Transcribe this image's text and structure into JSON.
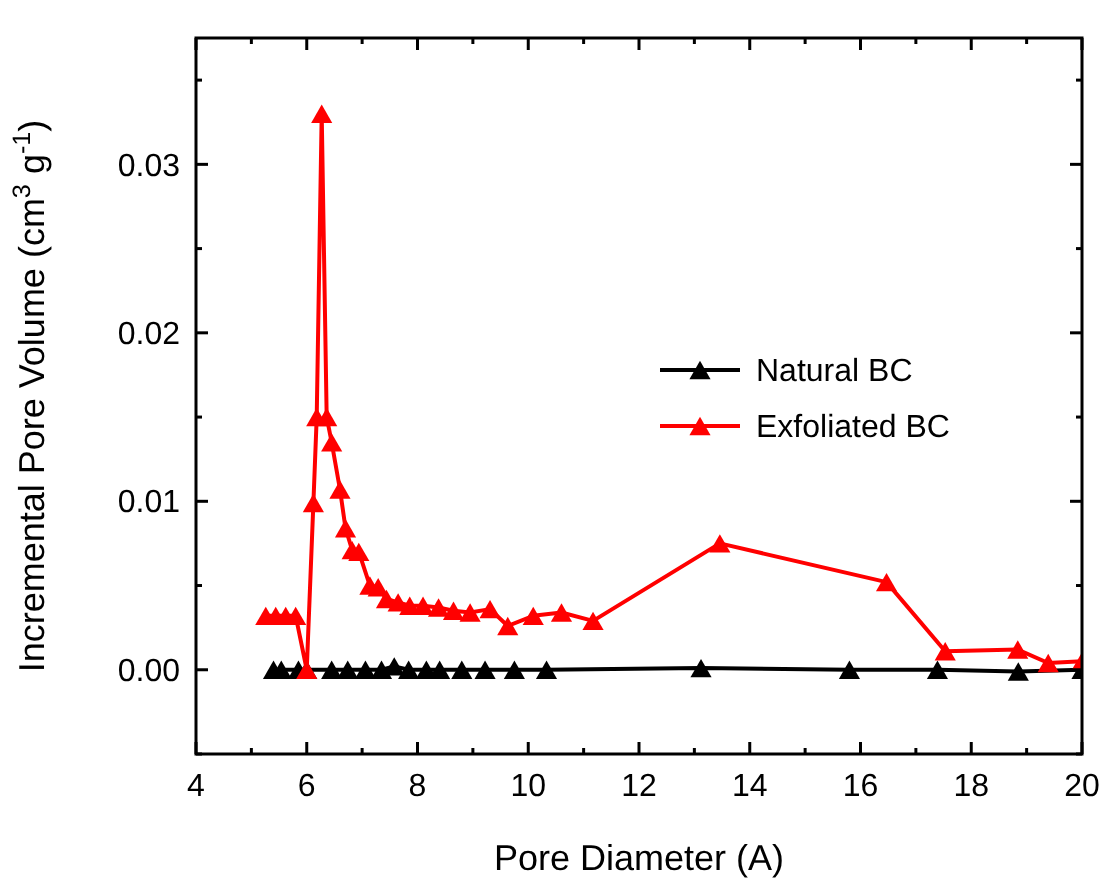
{
  "chart_data": {
    "type": "line",
    "xlabel": "Pore Diameter (A)",
    "ylabel": "Incremental Pore Volume (cm$^{3}$ g$^{-1}$)",
    "xlim": [
      4,
      20
    ],
    "ylim": [
      -0.005,
      0.0375
    ],
    "xticks": [
      4,
      {
        "value": 5,
        "label": null
      },
      6,
      {
        "value": 7,
        "label": null
      },
      8,
      {
        "value": 9,
        "label": null
      },
      10,
      {
        "value": 11,
        "label": null
      },
      12,
      {
        "value": 13,
        "label": null
      },
      14,
      {
        "value": 15,
        "label": null
      },
      16,
      {
        "value": 17,
        "label": null
      },
      18,
      {
        "value": 19,
        "label": null
      },
      20
    ],
    "yticks": [
      {
        "value": -0.005,
        "label": null
      },
      {
        "value": 0,
        "label": "0.00"
      },
      {
        "value": 0.005,
        "label": null
      },
      {
        "value": 0.01,
        "label": "0.01"
      },
      {
        "value": 0.015,
        "label": null
      },
      {
        "value": 0.02,
        "label": "0.02"
      },
      {
        "value": 0.025,
        "label": null
      },
      {
        "value": 0.03,
        "label": "0.03"
      },
      {
        "value": 0.035,
        "label": null
      }
    ],
    "marker": "triangle",
    "line_style": "solid",
    "grid": false,
    "legend": "right",
    "series": [
      {
        "name": "Natural BC",
        "color": "#000000",
        "x": [
          5.4,
          5.54,
          5.85,
          6.0,
          6.45,
          6.74,
          7.06,
          7.35,
          7.58,
          7.84,
          8.16,
          8.4,
          8.8,
          9.22,
          9.75,
          10.33,
          13.12,
          15.8,
          17.39,
          18.85,
          20
        ],
        "values": [
          0,
          0,
          0,
          0,
          0,
          0,
          0,
          0,
          0.0002,
          0,
          0,
          0,
          0,
          0,
          0,
          0,
          0.0001,
          0,
          0,
          -0.0001,
          0
        ]
      },
      {
        "name": "Exfoliated BC",
        "color": "#ff0000",
        "x": [
          5.26,
          5.44,
          5.62,
          5.8,
          6.0,
          6.12,
          6.18,
          6.27,
          6.36,
          6.45,
          6.6,
          6.7,
          6.82,
          6.94,
          7.14,
          7.29,
          7.44,
          7.65,
          7.86,
          8.1,
          8.38,
          8.65,
          8.95,
          9.31,
          9.63,
          10.09,
          10.6,
          11.17,
          13.46,
          16.47,
          17.53,
          18.84,
          19.39,
          20
        ],
        "values": [
          0.0032,
          0.0032,
          0.0032,
          0.0032,
          0,
          0.0099,
          0.015,
          0.033,
          0.015,
          0.0135,
          0.0107,
          0.0084,
          0.0071,
          0.007,
          0.005,
          0.0049,
          0.0042,
          0.004,
          0.0038,
          0.0038,
          0.0037,
          0.0035,
          0.0034,
          0.0036,
          0.0026,
          0.0032,
          0.0034,
          0.0029,
          0.0075,
          0.0052,
          0.0011,
          0.0012,
          0.0004,
          0.0005
        ]
      }
    ]
  }
}
